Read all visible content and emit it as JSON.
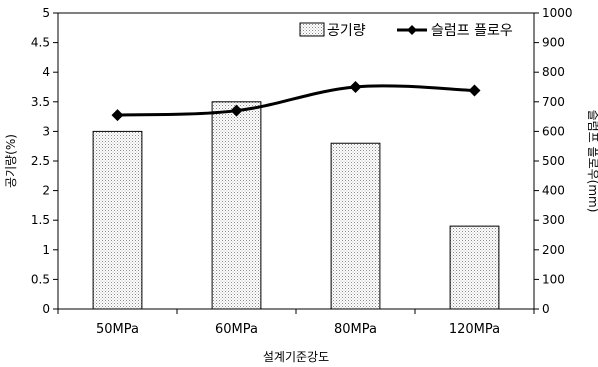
{
  "chart_data": {
    "type": "bar",
    "categories": [
      "50MPa",
      "60MPa",
      "80MPa",
      "120MPa"
    ],
    "xlabel": "설계기준강도",
    "series": [
      {
        "name": "공기량",
        "kind": "bar",
        "axis": "left",
        "values": [
          3.0,
          3.5,
          2.8,
          1.4
        ]
      },
      {
        "name": "슬럼프 플로우",
        "kind": "line",
        "axis": "right",
        "values": [
          655,
          670,
          750,
          738
        ]
      }
    ],
    "y_left": {
      "label": "공기량(%)",
      "range": [
        0,
        5
      ],
      "ticks": [
        "0",
        "0.5",
        "1",
        "1.5",
        "2",
        "2.5",
        "3",
        "3.5",
        "4",
        "4.5",
        "5"
      ]
    },
    "y_right": {
      "label": "슬럼프 플로우(mm)",
      "range": [
        0,
        1000
      ],
      "ticks": [
        "0",
        "100",
        "200",
        "300",
        "400",
        "500",
        "600",
        "700",
        "800",
        "900",
        "1000"
      ]
    },
    "legend_position": "top-right",
    "grid": false
  },
  "colors": {
    "bar_fill": "#dcdcdc",
    "bar_stroke": "#000000",
    "line": "#000000"
  }
}
